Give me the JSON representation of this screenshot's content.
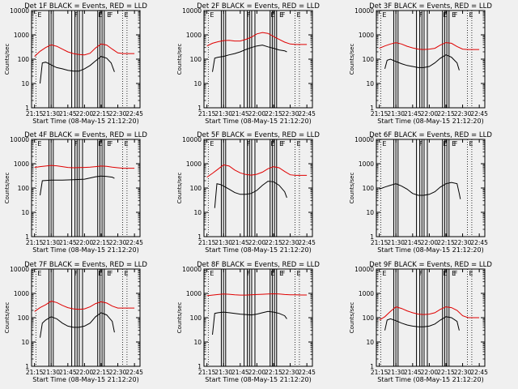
{
  "colors": {
    "background": "#f0f0f0",
    "events": "#000000",
    "lld": "#e00000",
    "axes": "#000000"
  },
  "chart_data": [
    {
      "type": "line",
      "title": "Det 1F BLACK = Events, RED = LLD",
      "xlabel": "Start Time (08-May-15 21:12:20)",
      "ylabel": "Counts/sec",
      "yscale": "log",
      "ylim": [
        1,
        10000
      ],
      "xlim": [
        "21:12:20",
        "22:50:00"
      ],
      "x_ticks": [
        "21:15",
        "21:30",
        "21:45",
        "22:00",
        "22:15",
        "22:30",
        "22:45"
      ],
      "y_ticks": [
        "1",
        "10",
        "100",
        "1000",
        "10000"
      ],
      "markers": [
        "E",
        "F",
        "E",
        "E",
        "F",
        "E"
      ],
      "series": [
        {
          "name": "Events",
          "color": "#000000",
          "x": [
            "21:20",
            "21:22",
            "21:25",
            "21:28",
            "21:31",
            "21:35",
            "21:40",
            "21:45",
            "21:50",
            "21:55",
            "22:00",
            "22:05",
            "22:10",
            "22:15",
            "22:20",
            "22:24",
            "22:27"
          ],
          "y": [
            10,
            70,
            75,
            65,
            55,
            45,
            40,
            35,
            32,
            32,
            40,
            55,
            85,
            130,
            110,
            70,
            30
          ]
        },
        {
          "name": "LLD",
          "color": "#e00000",
          "x": [
            "21:15",
            "21:20",
            "21:25",
            "21:30",
            "21:35",
            "21:40",
            "21:45",
            "21:50",
            "21:55",
            "22:00",
            "22:05",
            "22:10",
            "22:15",
            "22:20",
            "22:25",
            "22:30",
            "22:35",
            "22:40",
            "22:45"
          ],
          "y": [
            130,
            210,
            300,
            390,
            340,
            260,
            200,
            170,
            155,
            150,
            175,
            290,
            420,
            380,
            260,
            180,
            170,
            170,
            170
          ]
        }
      ]
    },
    {
      "type": "line",
      "title": "Det 2F BLACK = Events, RED = LLD",
      "xlabel": "Start Time (08-May-15 21:12:20)",
      "ylabel": "Counts/sec",
      "yscale": "log",
      "ylim": [
        1,
        10000
      ],
      "xlim": [
        "21:12:20",
        "22:50:00"
      ],
      "x_ticks": [
        "21:15",
        "21:30",
        "21:45",
        "22:00",
        "22:15",
        "22:30",
        "22:45"
      ],
      "y_ticks": [
        "1",
        "10",
        "100",
        "1000",
        "10000"
      ],
      "markers": [
        "E",
        "F",
        "E",
        "E",
        "F",
        "E"
      ],
      "series": [
        {
          "name": "Events",
          "color": "#000000",
          "x": [
            "21:20",
            "21:22",
            "21:25",
            "21:30",
            "21:35",
            "21:40",
            "21:45",
            "21:50",
            "21:55",
            "22:00",
            "22:05",
            "22:10",
            "22:15",
            "22:20",
            "22:25",
            "22:27"
          ],
          "y": [
            30,
            110,
            120,
            130,
            150,
            170,
            200,
            250,
            300,
            350,
            380,
            320,
            280,
            240,
            220,
            200
          ]
        },
        {
          "name": "LLD",
          "color": "#e00000",
          "x": [
            "21:15",
            "21:20",
            "21:25",
            "21:30",
            "21:35",
            "21:40",
            "21:45",
            "21:50",
            "21:55",
            "22:00",
            "22:05",
            "22:10",
            "22:15",
            "22:20",
            "22:25",
            "22:30",
            "22:35",
            "22:40",
            "22:45"
          ],
          "y": [
            350,
            450,
            520,
            580,
            600,
            560,
            560,
            650,
            800,
            1100,
            1250,
            1150,
            850,
            650,
            500,
            420,
            400,
            400,
            400
          ]
        }
      ]
    },
    {
      "type": "line",
      "title": "Det 3F BLACK = Events, RED = LLD",
      "xlabel": "Start Time (08-May-15 21:12:20)",
      "ylabel": "Counts/sec",
      "yscale": "log",
      "ylim": [
        1,
        10000
      ],
      "xlim": [
        "21:12:20",
        "22:50:00"
      ],
      "x_ticks": [
        "21:15",
        "21:30",
        "21:45",
        "22:00",
        "22:15",
        "22:30",
        "22:45"
      ],
      "y_ticks": [
        "1",
        "10",
        "100",
        "1000",
        "10000"
      ],
      "markers": [
        "E",
        "F",
        "E",
        "E",
        "F",
        "E"
      ],
      "series": [
        {
          "name": "Events",
          "color": "#000000",
          "x": [
            "21:20",
            "21:22",
            "21:25",
            "21:30",
            "21:35",
            "21:40",
            "21:45",
            "21:50",
            "21:55",
            "22:00",
            "22:05",
            "22:10",
            "22:15",
            "22:20",
            "22:25",
            "22:27"
          ],
          "y": [
            40,
            90,
            100,
            80,
            65,
            55,
            50,
            45,
            45,
            50,
            70,
            110,
            150,
            120,
            70,
            35
          ]
        },
        {
          "name": "LLD",
          "color": "#e00000",
          "x": [
            "21:15",
            "21:20",
            "21:25",
            "21:30",
            "21:35",
            "21:40",
            "21:45",
            "21:50",
            "21:55",
            "22:00",
            "22:05",
            "22:10",
            "22:15",
            "22:20",
            "22:25",
            "22:30",
            "22:35",
            "22:40",
            "22:45"
          ],
          "y": [
            280,
            350,
            420,
            480,
            420,
            340,
            290,
            260,
            250,
            260,
            280,
            380,
            480,
            450,
            330,
            260,
            250,
            250,
            250
          ]
        }
      ]
    },
    {
      "type": "line",
      "title": "Det 4F BLACK = Events, RED = LLD",
      "xlabel": "Start Time (08-May-15 21:12:20)",
      "ylabel": "Counts/sec",
      "yscale": "log",
      "ylim": [
        1,
        10000
      ],
      "xlim": [
        "21:12:20",
        "22:50:00"
      ],
      "x_ticks": [
        "21:15",
        "21:30",
        "21:45",
        "22:00",
        "22:15",
        "22:30",
        "22:45"
      ],
      "y_ticks": [
        "1",
        "10",
        "100",
        "1000",
        "10000"
      ],
      "markers": [
        "E",
        "F",
        "E",
        "E",
        "F",
        "E"
      ],
      "series": [
        {
          "name": "Events",
          "color": "#000000",
          "x": [
            "21:20",
            "21:22",
            "21:30",
            "21:40",
            "21:50",
            "22:00",
            "22:05",
            "22:10",
            "22:15",
            "22:20",
            "22:25",
            "22:27"
          ],
          "y": [
            50,
            200,
            210,
            210,
            220,
            230,
            260,
            290,
            310,
            300,
            280,
            250
          ]
        },
        {
          "name": "LLD",
          "color": "#e00000",
          "x": [
            "21:15",
            "21:20",
            "21:25",
            "21:30",
            "21:35",
            "21:40",
            "21:45",
            "21:50",
            "21:55",
            "22:00",
            "22:05",
            "22:10",
            "22:15",
            "22:20",
            "22:25",
            "22:30",
            "22:35",
            "22:40",
            "22:45"
          ],
          "y": [
            700,
            760,
            800,
            850,
            820,
            760,
            700,
            680,
            690,
            700,
            720,
            760,
            800,
            780,
            720,
            680,
            650,
            650,
            650
          ]
        }
      ]
    },
    {
      "type": "line",
      "title": "Det 5F BLACK = Events, RED = LLD",
      "xlabel": "Start Time (08-May-15 21:12:20)",
      "ylabel": "Counts/sec",
      "yscale": "log",
      "ylim": [
        1,
        10000
      ],
      "xlim": [
        "21:12:20",
        "22:50:00"
      ],
      "x_ticks": [
        "21:15",
        "21:30",
        "21:45",
        "22:00",
        "22:15",
        "22:30",
        "22:45"
      ],
      "y_ticks": [
        "1",
        "10",
        "100",
        "1000",
        "10000"
      ],
      "markers": [
        "E",
        "F",
        "E",
        "E",
        "F",
        "E"
      ],
      "series": [
        {
          "name": "Events",
          "color": "#000000",
          "x": [
            "21:22",
            "21:24",
            "21:27",
            "21:30",
            "21:35",
            "21:40",
            "21:45",
            "21:50",
            "21:55",
            "22:00",
            "22:05",
            "22:10",
            "22:15",
            "22:20",
            "22:25",
            "22:27"
          ],
          "y": [
            15,
            150,
            140,
            120,
            90,
            65,
            55,
            55,
            60,
            80,
            130,
            190,
            180,
            130,
            70,
            40
          ]
        },
        {
          "name": "LLD",
          "color": "#e00000",
          "x": [
            "21:15",
            "21:20",
            "21:25",
            "21:30",
            "21:35",
            "21:40",
            "21:45",
            "21:50",
            "21:55",
            "22:00",
            "22:05",
            "22:10",
            "22:15",
            "22:20",
            "22:25",
            "22:30",
            "22:35",
            "22:40",
            "22:45"
          ],
          "y": [
            280,
            400,
            600,
            900,
            800,
            550,
            420,
            360,
            340,
            370,
            450,
            620,
            750,
            680,
            480,
            350,
            330,
            330,
            330
          ]
        }
      ]
    },
    {
      "type": "line",
      "title": "Det 6F BLACK = Events, RED = LLD",
      "xlabel": "Start Time (08-May-15 21:12:20)",
      "ylabel": "Counts/sec",
      "yscale": "log",
      "ylim": [
        1,
        10000
      ],
      "xlim": [
        "21:12:20",
        "22:50:00"
      ],
      "x_ticks": [
        "21:15",
        "21:30",
        "21:45",
        "22:00",
        "22:15",
        "22:30",
        "22:45"
      ],
      "y_ticks": [
        "1",
        "10",
        "100",
        "1000",
        "10000"
      ],
      "markers": [
        "E",
        "F",
        "E",
        "E",
        "F",
        "E"
      ],
      "series": [
        {
          "name": "Events",
          "color": "#000000",
          "x": [
            "21:15",
            "21:20",
            "21:25",
            "21:30",
            "21:35",
            "21:40",
            "21:45",
            "21:50",
            "21:55",
            "22:00",
            "22:05",
            "22:10",
            "22:15",
            "22:20",
            "22:25",
            "22:27",
            "22:28"
          ],
          "y": [
            90,
            110,
            130,
            150,
            120,
            90,
            60,
            50,
            50,
            55,
            70,
            110,
            150,
            170,
            150,
            60,
            35
          ]
        },
        {
          "name": "LLD",
          "color": "#e00000",
          "x": [],
          "y": []
        }
      ]
    },
    {
      "type": "line",
      "title": "Det 7F BLACK = Events, RED = LLD",
      "xlabel": "Start Time (08-May-15 21:12:20)",
      "ylabel": "Counts/sec",
      "yscale": "log",
      "ylim": [
        1,
        10000
      ],
      "xlim": [
        "21:12:20",
        "22:50:00"
      ],
      "x_ticks": [
        "21:15",
        "21:30",
        "21:45",
        "22:00",
        "22:15",
        "22:30",
        "22:45"
      ],
      "y_ticks": [
        "1",
        "10",
        "100",
        "1000",
        "10000"
      ],
      "markers": [
        "E",
        "F",
        "E",
        "E",
        "F",
        "E"
      ],
      "series": [
        {
          "name": "Events",
          "color": "#000000",
          "x": [
            "21:20",
            "21:22",
            "21:25",
            "21:30",
            "21:35",
            "21:40",
            "21:45",
            "21:50",
            "21:55",
            "22:00",
            "22:05",
            "22:10",
            "22:15",
            "22:20",
            "22:25",
            "22:27"
          ],
          "y": [
            15,
            60,
            80,
            110,
            90,
            60,
            45,
            40,
            40,
            45,
            60,
            110,
            160,
            130,
            70,
            25
          ]
        },
        {
          "name": "LLD",
          "color": "#e00000",
          "x": [
            "21:15",
            "21:20",
            "21:25",
            "21:30",
            "21:35",
            "21:40",
            "21:45",
            "21:50",
            "21:55",
            "22:00",
            "22:05",
            "22:10",
            "22:15",
            "22:20",
            "22:25",
            "22:30",
            "22:35",
            "22:40",
            "22:45"
          ],
          "y": [
            180,
            260,
            340,
            480,
            420,
            320,
            260,
            230,
            220,
            230,
            280,
            380,
            450,
            400,
            300,
            250,
            250,
            250,
            250
          ]
        }
      ]
    },
    {
      "type": "line",
      "title": "Det 8F BLACK = Events, RED = LLD",
      "xlabel": "Start Time (08-May-15 21:12:20)",
      "ylabel": "Counts/sec",
      "yscale": "log",
      "ylim": [
        1,
        10000
      ],
      "xlim": [
        "21:12:20",
        "22:50:00"
      ],
      "x_ticks": [
        "21:15",
        "21:30",
        "21:45",
        "22:00",
        "22:15",
        "22:30",
        "22:45"
      ],
      "y_ticks": [
        "1",
        "10",
        "100",
        "1000",
        "10000"
      ],
      "markers": [
        "E",
        "F",
        "E",
        "E",
        "F",
        "E"
      ],
      "series": [
        {
          "name": "Events",
          "color": "#000000",
          "x": [
            "21:20",
            "21:22",
            "21:25",
            "21:30",
            "21:35",
            "21:40",
            "21:45",
            "21:50",
            "21:55",
            "22:00",
            "22:05",
            "22:10",
            "22:15",
            "22:20",
            "22:25",
            "22:27"
          ],
          "y": [
            20,
            150,
            160,
            170,
            160,
            150,
            140,
            135,
            130,
            140,
            160,
            180,
            170,
            150,
            120,
            90
          ]
        },
        {
          "name": "LLD",
          "color": "#e00000",
          "x": [
            "21:15",
            "21:20",
            "21:25",
            "21:30",
            "21:35",
            "21:40",
            "21:45",
            "21:50",
            "21:55",
            "22:00",
            "22:05",
            "22:10",
            "22:15",
            "22:20",
            "22:25",
            "22:30",
            "22:35",
            "22:40",
            "22:45"
          ],
          "y": [
            800,
            850,
            900,
            950,
            920,
            880,
            850,
            850,
            870,
            900,
            920,
            950,
            960,
            940,
            900,
            880,
            870,
            860,
            860
          ]
        }
      ]
    },
    {
      "type": "line",
      "title": "Det 9F BLACK = Events, RED = LLD",
      "xlabel": "Start Time (08-May-15 21:12:20)",
      "ylabel": "Counts/sec",
      "yscale": "log",
      "ylim": [
        1,
        10000
      ],
      "xlim": [
        "21:12:20",
        "22:50:00"
      ],
      "x_ticks": [
        "21:15",
        "21:30",
        "21:45",
        "22:00",
        "22:15",
        "22:30",
        "22:45"
      ],
      "y_ticks": [
        "1",
        "10",
        "100",
        "1000",
        "10000"
      ],
      "markers": [
        "E",
        "F",
        "E",
        "E",
        "F",
        "E"
      ],
      "series": [
        {
          "name": "Events",
          "color": "#000000",
          "x": [
            "21:20",
            "21:22",
            "21:25",
            "21:30",
            "21:35",
            "21:40",
            "21:45",
            "21:50",
            "21:55",
            "22:00",
            "22:05",
            "22:10",
            "22:15",
            "22:20",
            "22:25",
            "22:27"
          ],
          "y": [
            30,
            80,
            90,
            75,
            60,
            50,
            45,
            42,
            42,
            45,
            55,
            80,
            110,
            100,
            70,
            30
          ]
        },
        {
          "name": "LLD",
          "color": "#e00000",
          "x": [
            "21:15",
            "21:20",
            "21:25",
            "21:30",
            "21:35",
            "21:40",
            "21:45",
            "21:50",
            "21:55",
            "22:00",
            "22:05",
            "22:10",
            "22:15",
            "22:20",
            "22:25",
            "22:30",
            "22:35",
            "22:40",
            "22:45"
          ],
          "y": [
            80,
            110,
            180,
            280,
            240,
            190,
            160,
            140,
            135,
            140,
            160,
            220,
            280,
            260,
            200,
            120,
            100,
            100,
            100
          ]
        }
      ]
    }
  ]
}
